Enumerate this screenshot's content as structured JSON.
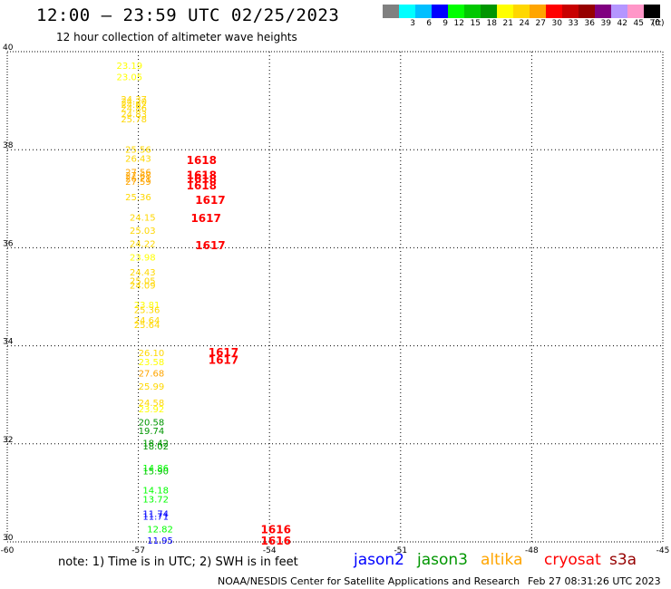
{
  "header": {
    "title": "12:00 – 23:59 UTC 02/25/2023",
    "subtitle": "12 hour collection of altimeter wave heights"
  },
  "legend": {
    "unit": "(ft)",
    "swatches": [
      {
        "label": "",
        "color": "#808080"
      },
      {
        "label": "3",
        "color": "#00ffff"
      },
      {
        "label": "6",
        "color": "#00bfff"
      },
      {
        "label": "9",
        "color": "#0000ff"
      },
      {
        "label": "12",
        "color": "#00ff00"
      },
      {
        "label": "15",
        "color": "#00c800"
      },
      {
        "label": "18",
        "color": "#009600"
      },
      {
        "label": "21",
        "color": "#ffff00"
      },
      {
        "label": "24",
        "color": "#ffd700"
      },
      {
        "label": "27",
        "color": "#ffa500"
      },
      {
        "label": "30",
        "color": "#ff0000"
      },
      {
        "label": "33",
        "color": "#c80000"
      },
      {
        "label": "36",
        "color": "#960000"
      },
      {
        "label": "39",
        "color": "#800080"
      },
      {
        "label": "42",
        "color": "#b496ff"
      },
      {
        "label": "45",
        "color": "#ff96c8"
      },
      {
        "label": "70",
        "color": "#000000"
      }
    ]
  },
  "map": {
    "lon_range": [
      -60,
      -45
    ],
    "lat_range": [
      30,
      40
    ],
    "lon_ticks": [
      "-60",
      "-57",
      "-54",
      "-51",
      "-48",
      "-45"
    ],
    "lat_ticks": [
      "30",
      "32",
      "34",
      "36",
      "38",
      "40"
    ],
    "grid": "dotted",
    "observations": [
      {
        "lon": -57.5,
        "lat": 39.72,
        "text": "23.19",
        "color": "#ffff00"
      },
      {
        "lon": -57.5,
        "lat": 39.49,
        "text": "23.05",
        "color": "#ffff00"
      },
      {
        "lon": -57.4,
        "lat": 39.04,
        "text": "24.37",
        "color": "#ffd700"
      },
      {
        "lon": -57.4,
        "lat": 38.99,
        "text": "24.20",
        "color": "#ffd700"
      },
      {
        "lon": -57.4,
        "lat": 38.93,
        "text": "24.82",
        "color": "#ffd700"
      },
      {
        "lon": -57.4,
        "lat": 38.85,
        "text": "24.86",
        "color": "#ffd700"
      },
      {
        "lon": -57.4,
        "lat": 38.73,
        "text": "24.83",
        "color": "#ffd700"
      },
      {
        "lon": -57.4,
        "lat": 38.63,
        "text": "25.78",
        "color": "#ffd700"
      },
      {
        "lon": -57.3,
        "lat": 38.01,
        "text": "25.56",
        "color": "#ffd700"
      },
      {
        "lon": -57.3,
        "lat": 37.83,
        "text": "26.43",
        "color": "#ffd700"
      },
      {
        "lon": -57.3,
        "lat": 37.55,
        "text": "27.56",
        "color": "#ffa500"
      },
      {
        "lon": -57.3,
        "lat": 37.49,
        "text": "27.68",
        "color": "#ffa500"
      },
      {
        "lon": -57.3,
        "lat": 37.42,
        "text": "26.21",
        "color": "#ffa500"
      },
      {
        "lon": -57.3,
        "lat": 37.36,
        "text": "27.59",
        "color": "#ffa500"
      },
      {
        "lon": -57.3,
        "lat": 37.04,
        "text": "25.36",
        "color": "#ffd700"
      },
      {
        "lon": -57.2,
        "lat": 36.63,
        "text": "24.15",
        "color": "#ffd700"
      },
      {
        "lon": -57.2,
        "lat": 36.36,
        "text": "25.03",
        "color": "#ffd700"
      },
      {
        "lon": -57.2,
        "lat": 36.09,
        "text": "24.22",
        "color": "#ffd700"
      },
      {
        "lon": -57.2,
        "lat": 35.81,
        "text": "23.98",
        "color": "#ffff00"
      },
      {
        "lon": -57.2,
        "lat": 35.51,
        "text": "24.43",
        "color": "#ffd700"
      },
      {
        "lon": -57.2,
        "lat": 35.33,
        "text": "25.05",
        "color": "#ffd700"
      },
      {
        "lon": -57.2,
        "lat": 35.24,
        "text": "24.09",
        "color": "#ffd700"
      },
      {
        "lon": -57.1,
        "lat": 34.84,
        "text": "23.81",
        "color": "#ffff00"
      },
      {
        "lon": -57.1,
        "lat": 34.74,
        "text": "25.36",
        "color": "#ffd700"
      },
      {
        "lon": -57.1,
        "lat": 34.53,
        "text": "24.64",
        "color": "#ffd700"
      },
      {
        "lon": -57.1,
        "lat": 34.44,
        "text": "25.64",
        "color": "#ffd700"
      },
      {
        "lon": -57.0,
        "lat": 33.86,
        "text": "26.10",
        "color": "#ffd700"
      },
      {
        "lon": -57.0,
        "lat": 33.68,
        "text": "23.58",
        "color": "#ffff00"
      },
      {
        "lon": -57.0,
        "lat": 33.45,
        "text": "27.68",
        "color": "#ffa500"
      },
      {
        "lon": -57.0,
        "lat": 33.18,
        "text": "25.99",
        "color": "#ffd700"
      },
      {
        "lon": -57.0,
        "lat": 32.85,
        "text": "24.58",
        "color": "#ffd700"
      },
      {
        "lon": -57.0,
        "lat": 32.72,
        "text": "23.92",
        "color": "#ffff00"
      },
      {
        "lon": -57.0,
        "lat": 32.45,
        "text": "20.58",
        "color": "#009600"
      },
      {
        "lon": -57.0,
        "lat": 32.27,
        "text": "19.74",
        "color": "#009600"
      },
      {
        "lon": -56.9,
        "lat": 32.02,
        "text": "18.42",
        "color": "#009600"
      },
      {
        "lon": -56.9,
        "lat": 31.96,
        "text": "18.02",
        "color": "#009600"
      },
      {
        "lon": -56.9,
        "lat": 31.52,
        "text": "14.86",
        "color": "#00ff00"
      },
      {
        "lon": -56.9,
        "lat": 31.45,
        "text": "15.90",
        "color": "#00c800"
      },
      {
        "lon": -56.9,
        "lat": 31.06,
        "text": "14.18",
        "color": "#00ff00"
      },
      {
        "lon": -56.9,
        "lat": 30.88,
        "text": "13.72",
        "color": "#00ff00"
      },
      {
        "lon": -56.9,
        "lat": 30.58,
        "text": "11.74",
        "color": "#0000ff"
      },
      {
        "lon": -56.9,
        "lat": 30.53,
        "text": "11.71",
        "color": "#0000ff"
      },
      {
        "lon": -56.8,
        "lat": 30.27,
        "text": "12.82",
        "color": "#00ff00"
      },
      {
        "lon": -56.8,
        "lat": 30.04,
        "text": "11.95",
        "color": "#0000ff"
      }
    ],
    "passes": [
      {
        "lon": -55.9,
        "lat": 37.8,
        "text": "1618",
        "color": "#ff0000"
      },
      {
        "lon": -55.9,
        "lat": 37.5,
        "text": "1618",
        "color": "#ff0000"
      },
      {
        "lon": -55.9,
        "lat": 37.42,
        "text": "1618",
        "color": "#ff0000"
      },
      {
        "lon": -55.9,
        "lat": 37.28,
        "text": "1618",
        "color": "#ff0000"
      },
      {
        "lon": -55.7,
        "lat": 36.99,
        "text": "1617",
        "color": "#ff0000"
      },
      {
        "lon": -55.8,
        "lat": 36.62,
        "text": "1617",
        "color": "#ff0000"
      },
      {
        "lon": -55.7,
        "lat": 36.06,
        "text": "1617",
        "color": "#ff0000"
      },
      {
        "lon": -55.4,
        "lat": 33.88,
        "text": "1617",
        "color": "#ff0000"
      },
      {
        "lon": -55.4,
        "lat": 33.72,
        "text": "1617",
        "color": "#ff0000"
      },
      {
        "lon": -54.2,
        "lat": 30.27,
        "text": "1616",
        "color": "#ff0000"
      },
      {
        "lon": -54.2,
        "lat": 30.04,
        "text": "1616",
        "color": "#ff0000"
      }
    ]
  },
  "footer": {
    "note": "note:  1) Time is in UTC;  2) SWH is in feet",
    "satellites": [
      {
        "name": "jason2",
        "color": "#0000ff"
      },
      {
        "name": "jason3",
        "color": "#009600"
      },
      {
        "name": "altika",
        "color": "#ffa500"
      },
      {
        "name": "cryosat",
        "color": "#ff0000"
      },
      {
        "name": "s3a",
        "color": "#960000"
      }
    ],
    "credit": "NOAA/NESDIS Center for Satellite Applications and Research",
    "timestamp": "Feb 27 08:31:26 UTC 2023"
  }
}
